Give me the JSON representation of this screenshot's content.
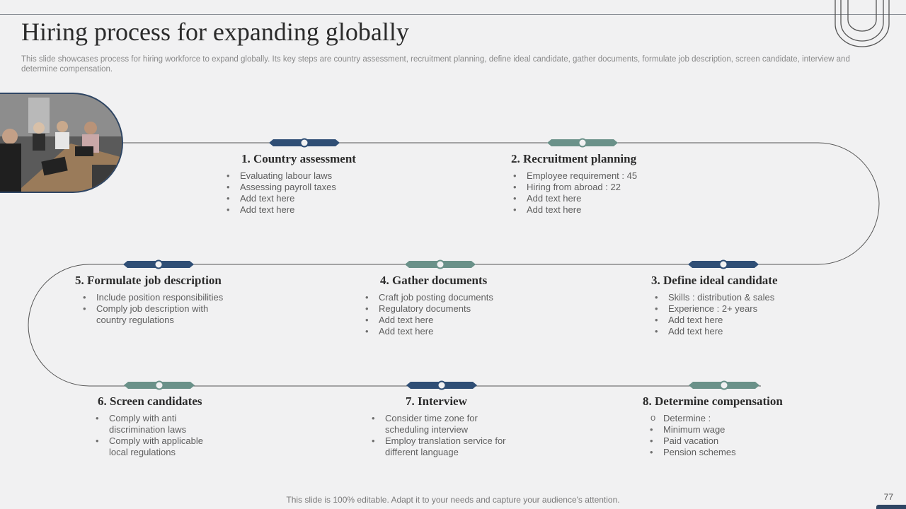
{
  "title": "Hiring process for expanding globally",
  "subtitle": "This slide showcases process for hiring workforce to expand globally. Its key steps are country assessment, recruitment planning, define ideal candidate, gather documents, formulate job description, screen candidate, interview and determine compensation.",
  "colors": {
    "navy": "#2f4e75",
    "teal": "#6a9189",
    "line": "#555555"
  },
  "steps": [
    {
      "title": "1. Country assessment",
      "bullets": [
        "Evaluating labour laws",
        "Assessing payroll taxes",
        "Add text here",
        "Add text here"
      ]
    },
    {
      "title": "2. Recruitment planning",
      "bullets": [
        "Employee requirement  : 45",
        "Hiring from  abroad  : 22",
        "Add text here",
        "Add text here"
      ]
    },
    {
      "title": "3. Define  ideal candidate",
      "bullets": [
        "Skills : distribution & sales",
        "Experience  : 2+ years",
        "Add text here",
        "Add text here"
      ]
    },
    {
      "title": "4. Gather documents",
      "bullets": [
        "Craft job posting documents",
        "Regulatory documents",
        "Add text here",
        "Add text here"
      ]
    },
    {
      "title": "5. Formulate job description",
      "bullets": [
        "Include position responsibilities",
        "Comply job description with country regulations"
      ]
    },
    {
      "title": "6. Screen candidates",
      "bullets": [
        "Comply with anti discrimination laws",
        "Comply with applicable local regulations"
      ]
    },
    {
      "title": "7. Interview",
      "bullets": [
        "Consider time zone for scheduling interview",
        "Employ translation service for different language"
      ]
    },
    {
      "title": "8. Determine  compensation",
      "sub_heading": "Determine  :",
      "bullets": [
        "Minimum wage",
        "Paid vacation",
        "Pension schemes"
      ]
    }
  ],
  "footer": "This slide is 100% editable. Adapt it to your needs and capture your audience's attention.",
  "page_number": "77"
}
